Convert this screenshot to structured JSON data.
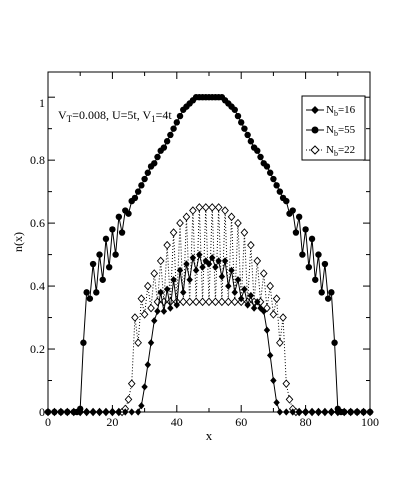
{
  "chart_data": {
    "type": "line",
    "xlabel": "x",
    "ylabel": "n(x)",
    "xlim": [
      0,
      100
    ],
    "ylim": [
      0,
      1.08
    ],
    "x_ticks": [
      "0",
      "20",
      "40",
      "60",
      "80",
      "100"
    ],
    "y_ticks": [
      "0",
      "0.2",
      "0.4",
      "0.6",
      "0.8",
      "1"
    ],
    "annotation": {
      "v": "V",
      "v_sub": "T",
      "v_val": "=0.008, U=5t, V",
      "v1_sub": "1",
      "v1_val": "=4t"
    },
    "legend_position": "top-right",
    "series": [
      {
        "name": "N_b=16",
        "label_main": "N",
        "label_sub": "b",
        "label_val": "=16",
        "marker": "diamond",
        "line": "solid",
        "points": [
          [
            0,
            0
          ],
          [
            2,
            0
          ],
          [
            4,
            0
          ],
          [
            6,
            0
          ],
          [
            8,
            0
          ],
          [
            10,
            0
          ],
          [
            12,
            0
          ],
          [
            14,
            0
          ],
          [
            16,
            0
          ],
          [
            18,
            0
          ],
          [
            20,
            0
          ],
          [
            22,
            0
          ],
          [
            24,
            0
          ],
          [
            26,
            0
          ],
          [
            28,
            0
          ],
          [
            29,
            0.02
          ],
          [
            30,
            0.08
          ],
          [
            31,
            0.15
          ],
          [
            32,
            0.22
          ],
          [
            33,
            0.29
          ],
          [
            34,
            0.32
          ],
          [
            35,
            0.38
          ],
          [
            36,
            0.32
          ],
          [
            37,
            0.39
          ],
          [
            38,
            0.33
          ],
          [
            39,
            0.42
          ],
          [
            40,
            0.34
          ],
          [
            41,
            0.45
          ],
          [
            42,
            0.38
          ],
          [
            43,
            0.47
          ],
          [
            44,
            0.42
          ],
          [
            45,
            0.49
          ],
          [
            46,
            0.45
          ],
          [
            47,
            0.5
          ],
          [
            48,
            0.46
          ],
          [
            49,
            0.48
          ],
          [
            50,
            0.47
          ],
          [
            51,
            0.49
          ],
          [
            52,
            0.46
          ],
          [
            53,
            0.48
          ],
          [
            54,
            0.43
          ],
          [
            55,
            0.48
          ],
          [
            56,
            0.4
          ],
          [
            57,
            0.45
          ],
          [
            58,
            0.38
          ],
          [
            59,
            0.42
          ],
          [
            60,
            0.36
          ],
          [
            61,
            0.39
          ],
          [
            62,
            0.34
          ],
          [
            63,
            0.37
          ],
          [
            64,
            0.33
          ],
          [
            65,
            0.35
          ],
          [
            66,
            0.33
          ],
          [
            67,
            0.32
          ],
          [
            68,
            0.26
          ],
          [
            69,
            0.18
          ],
          [
            70,
            0.1
          ],
          [
            71,
            0.03
          ],
          [
            72,
            0
          ],
          [
            74,
            0
          ],
          [
            76,
            0
          ],
          [
            78,
            0
          ],
          [
            80,
            0
          ],
          [
            82,
            0
          ],
          [
            84,
            0
          ],
          [
            86,
            0
          ],
          [
            88,
            0
          ],
          [
            90,
            0
          ],
          [
            92,
            0
          ],
          [
            94,
            0
          ],
          [
            96,
            0
          ],
          [
            98,
            0
          ],
          [
            100,
            0
          ]
        ]
      },
      {
        "name": "N_b=55",
        "label_main": "N",
        "label_sub": "b",
        "label_val": "=55",
        "marker": "circle",
        "line": "solid",
        "points": [
          [
            0,
            0
          ],
          [
            2,
            0
          ],
          [
            4,
            0
          ],
          [
            6,
            0
          ],
          [
            8,
            0
          ],
          [
            9,
            0
          ],
          [
            10,
            0.01
          ],
          [
            11,
            0.22
          ],
          [
            12,
            0.38
          ],
          [
            13,
            0.36
          ],
          [
            14,
            0.47
          ],
          [
            15,
            0.38
          ],
          [
            16,
            0.5
          ],
          [
            17,
            0.42
          ],
          [
            18,
            0.55
          ],
          [
            19,
            0.46
          ],
          [
            20,
            0.58
          ],
          [
            21,
            0.5
          ],
          [
            22,
            0.62
          ],
          [
            23,
            0.57
          ],
          [
            24,
            0.64
          ],
          [
            25,
            0.63
          ],
          [
            26,
            0.67
          ],
          [
            27,
            0.68
          ],
          [
            28,
            0.7
          ],
          [
            29,
            0.72
          ],
          [
            30,
            0.74
          ],
          [
            31,
            0.76
          ],
          [
            32,
            0.78
          ],
          [
            33,
            0.79
          ],
          [
            34,
            0.81
          ],
          [
            35,
            0.83
          ],
          [
            36,
            0.84
          ],
          [
            37,
            0.86
          ],
          [
            38,
            0.88
          ],
          [
            39,
            0.9
          ],
          [
            40,
            0.92
          ],
          [
            41,
            0.94
          ],
          [
            42,
            0.96
          ],
          [
            43,
            0.97
          ],
          [
            44,
            0.98
          ],
          [
            45,
            0.99
          ],
          [
            46,
            1.0
          ],
          [
            47,
            1.0
          ],
          [
            48,
            1.0
          ],
          [
            49,
            1.0
          ],
          [
            50,
            1.0
          ],
          [
            51,
            1.0
          ],
          [
            52,
            1.0
          ],
          [
            53,
            1.0
          ],
          [
            54,
            1.0
          ],
          [
            55,
            0.99
          ],
          [
            56,
            0.98
          ],
          [
            57,
            0.97
          ],
          [
            58,
            0.96
          ],
          [
            59,
            0.94
          ],
          [
            60,
            0.92
          ],
          [
            61,
            0.9
          ],
          [
            62,
            0.88
          ],
          [
            63,
            0.86
          ],
          [
            64,
            0.84
          ],
          [
            65,
            0.83
          ],
          [
            66,
            0.81
          ],
          [
            67,
            0.79
          ],
          [
            68,
            0.78
          ],
          [
            69,
            0.76
          ],
          [
            70,
            0.74
          ],
          [
            71,
            0.72
          ],
          [
            72,
            0.7
          ],
          [
            73,
            0.68
          ],
          [
            74,
            0.67
          ],
          [
            75,
            0.63
          ],
          [
            76,
            0.64
          ],
          [
            77,
            0.57
          ],
          [
            78,
            0.62
          ],
          [
            79,
            0.5
          ],
          [
            80,
            0.58
          ],
          [
            81,
            0.46
          ],
          [
            82,
            0.55
          ],
          [
            83,
            0.42
          ],
          [
            84,
            0.5
          ],
          [
            85,
            0.38
          ],
          [
            86,
            0.47
          ],
          [
            87,
            0.36
          ],
          [
            88,
            0.38
          ],
          [
            89,
            0.22
          ],
          [
            90,
            0.01
          ],
          [
            91,
            0
          ],
          [
            92,
            0
          ],
          [
            94,
            0
          ],
          [
            96,
            0
          ],
          [
            98,
            0
          ],
          [
            100,
            0
          ]
        ]
      },
      {
        "name": "N_b=22",
        "label_main": "N",
        "label_sub": "b",
        "label_val": "=22",
        "marker": "diamond-open",
        "line": "dotted",
        "points": [
          [
            0,
            0
          ],
          [
            2,
            0
          ],
          [
            4,
            0
          ],
          [
            6,
            0
          ],
          [
            8,
            0
          ],
          [
            10,
            0
          ],
          [
            12,
            0
          ],
          [
            14,
            0
          ],
          [
            16,
            0
          ],
          [
            18,
            0
          ],
          [
            20,
            0
          ],
          [
            22,
            0
          ],
          [
            23,
            0
          ],
          [
            24,
            0.01
          ],
          [
            25,
            0.04
          ],
          [
            26,
            0.09
          ],
          [
            27,
            0.3
          ],
          [
            28,
            0.22
          ],
          [
            29,
            0.36
          ],
          [
            30,
            0.31
          ],
          [
            31,
            0.4
          ],
          [
            32,
            0.33
          ],
          [
            33,
            0.44
          ],
          [
            34,
            0.35
          ],
          [
            35,
            0.48
          ],
          [
            36,
            0.35
          ],
          [
            37,
            0.53
          ],
          [
            38,
            0.35
          ],
          [
            39,
            0.57
          ],
          [
            40,
            0.35
          ],
          [
            41,
            0.6
          ],
          [
            42,
            0.35
          ],
          [
            43,
            0.62
          ],
          [
            44,
            0.35
          ],
          [
            45,
            0.64
          ],
          [
            46,
            0.35
          ],
          [
            47,
            0.65
          ],
          [
            48,
            0.35
          ],
          [
            49,
            0.65
          ],
          [
            50,
            0.35
          ],
          [
            51,
            0.65
          ],
          [
            52,
            0.35
          ],
          [
            53,
            0.65
          ],
          [
            54,
            0.35
          ],
          [
            55,
            0.64
          ],
          [
            56,
            0.35
          ],
          [
            57,
            0.62
          ],
          [
            58,
            0.35
          ],
          [
            59,
            0.6
          ],
          [
            60,
            0.35
          ],
          [
            61,
            0.57
          ],
          [
            62,
            0.35
          ],
          [
            63,
            0.53
          ],
          [
            64,
            0.35
          ],
          [
            65,
            0.48
          ],
          [
            66,
            0.35
          ],
          [
            67,
            0.44
          ],
          [
            68,
            0.33
          ],
          [
            69,
            0.4
          ],
          [
            70,
            0.31
          ],
          [
            71,
            0.36
          ],
          [
            72,
            0.22
          ],
          [
            73,
            0.3
          ],
          [
            74,
            0.09
          ],
          [
            75,
            0.04
          ],
          [
            76,
            0.01
          ],
          [
            77,
            0
          ],
          [
            78,
            0
          ],
          [
            80,
            0
          ],
          [
            82,
            0
          ],
          [
            84,
            0
          ],
          [
            86,
            0
          ],
          [
            88,
            0
          ],
          [
            90,
            0
          ],
          [
            92,
            0
          ],
          [
            94,
            0
          ],
          [
            96,
            0
          ],
          [
            98,
            0
          ],
          [
            100,
            0
          ]
        ]
      }
    ]
  }
}
